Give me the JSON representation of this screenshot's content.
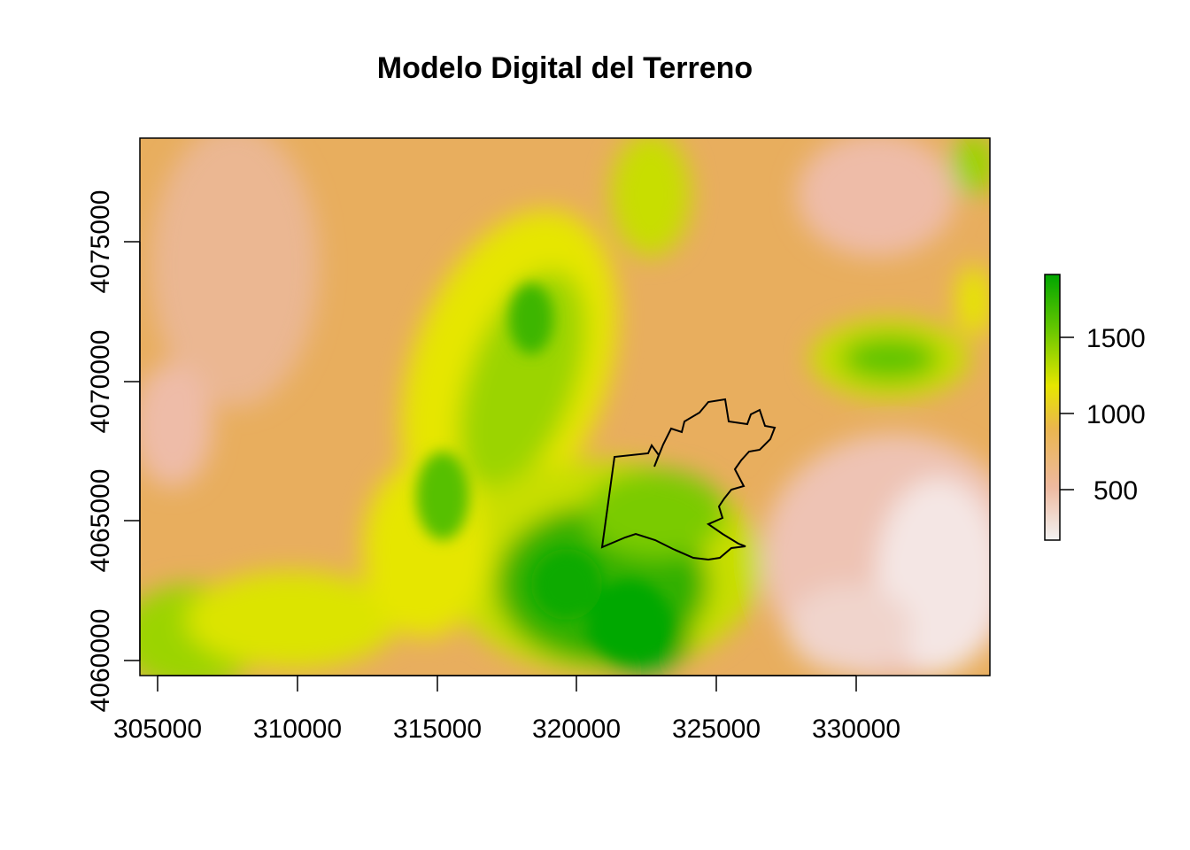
{
  "map": {
    "title": "Modelo Digital del Terreno",
    "x_ticks": [
      "305000",
      "310000",
      "315000",
      "320000",
      "325000",
      "330000"
    ],
    "y_ticks": [
      "4060000",
      "4065000",
      "4070000",
      "4075000"
    ],
    "legend": {
      "labels": [
        "500",
        "1000",
        "1500"
      ],
      "colors": [
        "#F2F2F2",
        "#EEB99F",
        "#EAB64E",
        "#E6E600",
        "#63C600",
        "#00A600"
      ]
    },
    "boundary_color": "#000000"
  }
}
